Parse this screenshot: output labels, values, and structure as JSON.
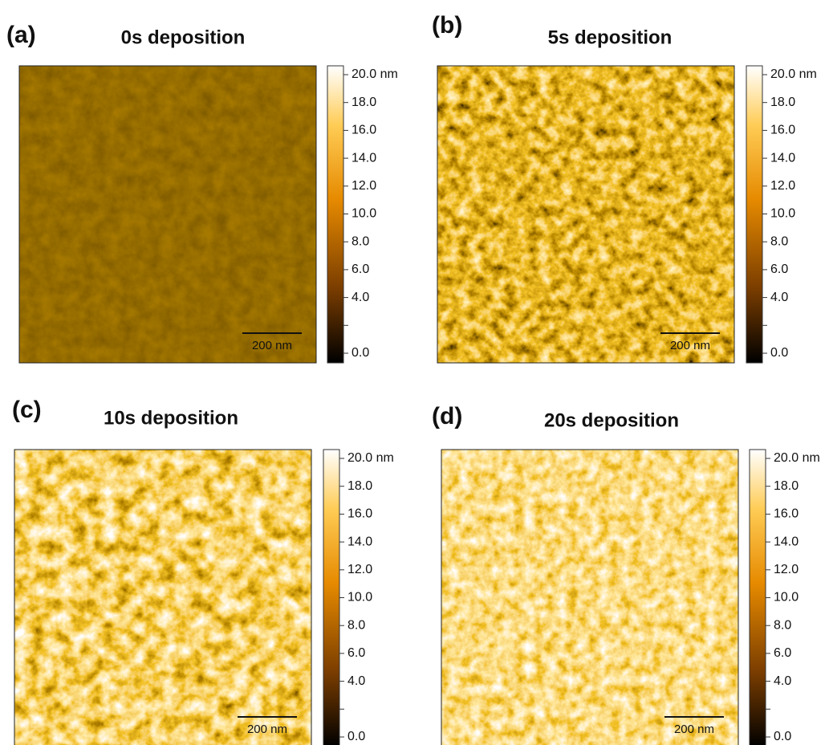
{
  "panels": [
    {
      "label": "(a)",
      "title": "0s deposition",
      "scale_bar": "200 nm",
      "colorbar_labels": [
        "20.0 nm",
        "18.0",
        "16.0",
        "14.0",
        "12.0",
        "10.0",
        "8.0",
        "6.0",
        "4.0",
        "0.0"
      ]
    },
    {
      "label": "(b)",
      "title": "5s deposition",
      "scale_bar": "200 nm",
      "colorbar_labels": [
        "20.0 nm",
        "18.0",
        "16.0",
        "14.0",
        "12.0",
        "10.0",
        "8.0",
        "6.0",
        "4.0",
        "0.0"
      ]
    },
    {
      "label": "(c)",
      "title": "10s deposition",
      "scale_bar": "200 nm",
      "colorbar_labels": [
        "20.0 nm",
        "18.0",
        "16.0",
        "14.0",
        "12.0",
        "10.0",
        "8.0",
        "6.0",
        "4.0",
        "0.0"
      ]
    },
    {
      "label": "(d)",
      "title": "20s deposition",
      "scale_bar": "200 nm",
      "colorbar_labels": [
        "20.0 nm",
        "18.0",
        "16.0",
        "14.0",
        "12.0",
        "10.0",
        "8.0",
        "6.0",
        "4.0",
        "0.0"
      ]
    }
  ]
}
